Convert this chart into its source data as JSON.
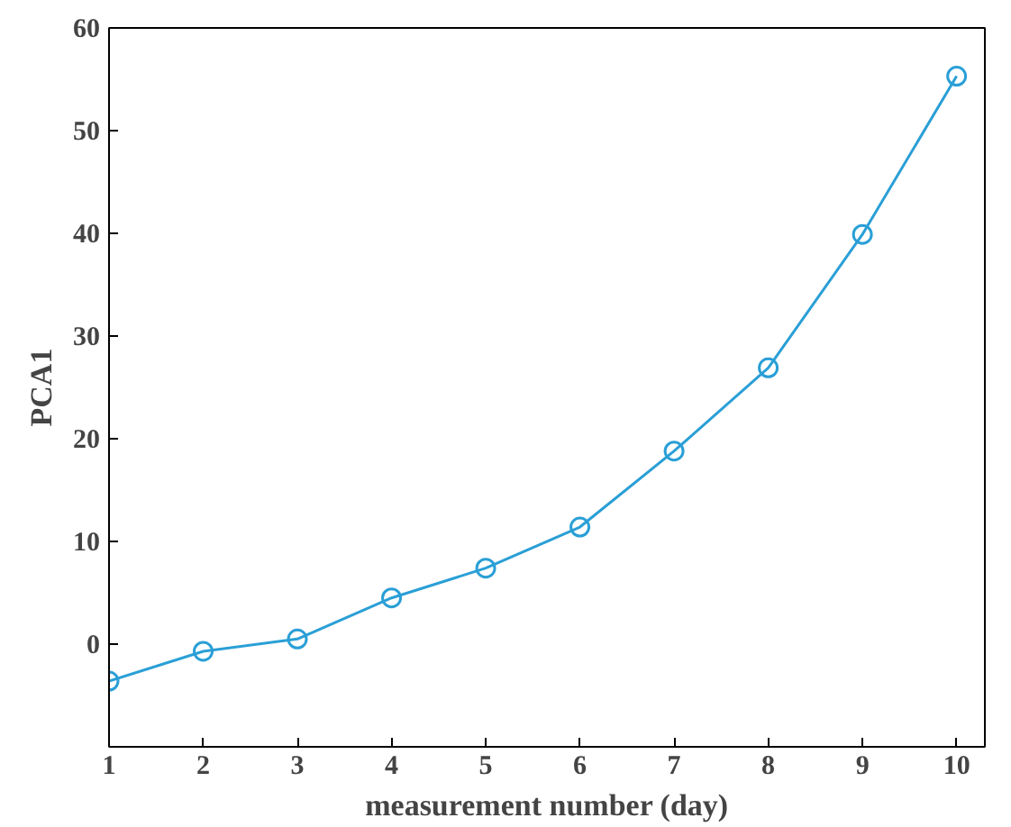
{
  "chart_data": {
    "type": "line",
    "xlabel": "measurement number (day)",
    "ylabel": "PCA1",
    "x": [
      1,
      2,
      3,
      4,
      5,
      6,
      7,
      8,
      9,
      10
    ],
    "series": [
      {
        "color": "#2a9fd6",
        "values": [
          -3.6,
          -0.7,
          0.5,
          4.5,
          7.4,
          11.4,
          18.8,
          26.9,
          39.9,
          55.3
        ]
      }
    ],
    "xlim": [
      1,
      10.3
    ],
    "xticks": [
      1,
      2,
      3,
      4,
      5,
      6,
      7,
      8,
      9,
      10
    ],
    "ylim": [
      -10,
      60
    ],
    "yticks": [
      {
        "value": -10,
        "label": null
      },
      0,
      10,
      20,
      30,
      40,
      50,
      60
    ],
    "marker": "circle",
    "grid": false
  }
}
